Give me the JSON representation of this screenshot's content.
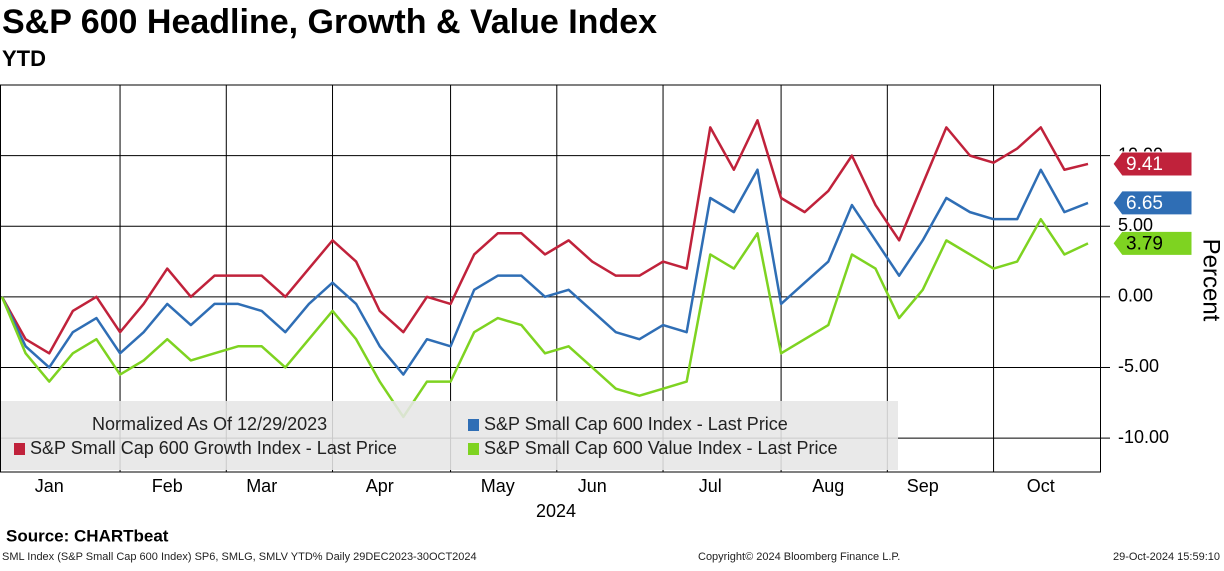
{
  "chart_data": {
    "type": "line",
    "title": "S&P 600 Headline, Growth & Value Index",
    "subtitle": "YTD",
    "y_label": "Percent",
    "x_label": "2024",
    "legend_note": "Normalized As Of 12/29/2023",
    "source": "Source: CHARTbeat",
    "footer_left": "SML Index (S&P Small Cap 600 Index) SP6, SMLG, SMLV YTD%  Daily 29DEC2023-30OCT2024",
    "footer_center": "Copyright© 2024 Bloomberg Finance L.P.",
    "footer_right": "29-Oct-2024 15:59:10",
    "categories": [
      null,
      null,
      "Jan",
      null,
      null,
      null,
      null,
      "Feb",
      null,
      null,
      null,
      "Mar",
      null,
      null,
      null,
      null,
      "Apr",
      null,
      null,
      null,
      null,
      "May",
      null,
      null,
      null,
      "Jun",
      null,
      null,
      null,
      null,
      "Jul",
      null,
      null,
      null,
      null,
      "Aug",
      null,
      null,
      null,
      "Sep",
      null,
      null,
      null,
      null,
      "Oct",
      null,
      null
    ],
    "ylim": [
      -12.4,
      15
    ],
    "yticks": [
      {
        "value": -10,
        "label": "-10.00"
      },
      {
        "value": -5,
        "label": "-5.00"
      },
      {
        "value": 0,
        "label": "0.00"
      },
      {
        "value": 5,
        "label": "5.00"
      },
      {
        "value": 10,
        "label": "10.00"
      }
    ],
    "grid": true,
    "series": [
      {
        "name": "S&P Small Cap 600 Index - Last Price",
        "color": "#2f6eb5",
        "last_label": "6.65",
        "values": [
          0,
          -3.5,
          -5,
          -2.5,
          -1.5,
          -4,
          -2.5,
          -0.5,
          -2,
          -0.5,
          -0.5,
          -1,
          -2.5,
          -0.5,
          1,
          -0.5,
          -3.5,
          -5.5,
          -3,
          -3.5,
          0.5,
          1.5,
          1.5,
          0,
          0.5,
          -1,
          -2.5,
          -3,
          -2,
          -2.5,
          7,
          6,
          9,
          -0.5,
          1,
          2.5,
          6.5,
          4,
          1.5,
          4,
          7,
          6,
          5.5,
          5.5,
          9,
          6,
          6.65
        ]
      },
      {
        "name": "S&P Small Cap 600 Growth Index - Last Price",
        "color": "#c0223b",
        "last_label": "9.41",
        "values": [
          0,
          -3,
          -4,
          -1,
          0,
          -2.5,
          -0.5,
          2,
          0,
          1.5,
          1.5,
          1.5,
          0,
          2,
          4,
          2.5,
          -1,
          -2.5,
          0,
          -0.5,
          3,
          4.5,
          4.5,
          3,
          4,
          2.5,
          1.5,
          1.5,
          2.5,
          2,
          12,
          9,
          12.5,
          7,
          6,
          7.5,
          10,
          6.5,
          4,
          8,
          12,
          10,
          9.5,
          10.5,
          12,
          9,
          9.41
        ]
      },
      {
        "name": "S&P Small Cap 600 Value Index - Last Price",
        "color": "#7ed321",
        "last_label": "3.79",
        "values": [
          0,
          -4,
          -6,
          -4,
          -3,
          -5.5,
          -4.5,
          -3,
          -4.5,
          -4,
          -3.5,
          -3.5,
          -5,
          -3,
          -1,
          -3,
          -6,
          -8.5,
          -6,
          -6,
          -2.5,
          -1.5,
          -2,
          -4,
          -3.5,
          -5,
          -6.5,
          -7,
          -6.5,
          -6,
          3,
          2,
          4.5,
          -4,
          -3,
          -2,
          3,
          2,
          -1.5,
          0.5,
          4,
          3,
          2,
          2.5,
          5.5,
          3,
          3.79
        ]
      }
    ]
  }
}
